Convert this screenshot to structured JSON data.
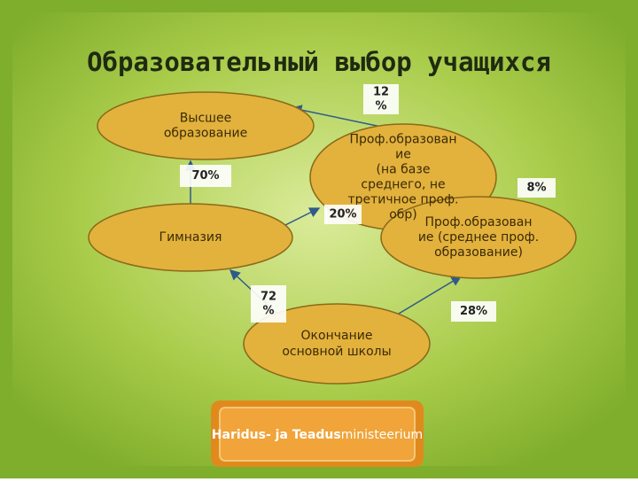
{
  "header": {
    "title": "Образовательный выбор учащихся"
  },
  "nodes": [
    {
      "label": [
        "Высшее",
        "образование"
      ]
    },
    {
      "label": [
        "Проф.образован",
        "ие",
        "(на базе",
        "среднего, не",
        "третичное проф.",
        "обр)"
      ]
    },
    {
      "label": [
        "Гимназия"
      ]
    },
    {
      "label": [
        "Проф.образован",
        "ие (среднее проф.",
        "образование)"
      ]
    },
    {
      "label": [
        "Окончание",
        "основной школы"
      ]
    }
  ],
  "percentages": [
    [
      "12",
      "%"
    ],
    [
      "70%"
    ],
    [
      "8%"
    ],
    [
      "20%"
    ],
    [
      "72",
      "%"
    ],
    [
      "28%"
    ]
  ],
  "logo": {
    "bold": "Haridus- ja Teadus",
    "regular": "ministeerium"
  }
}
